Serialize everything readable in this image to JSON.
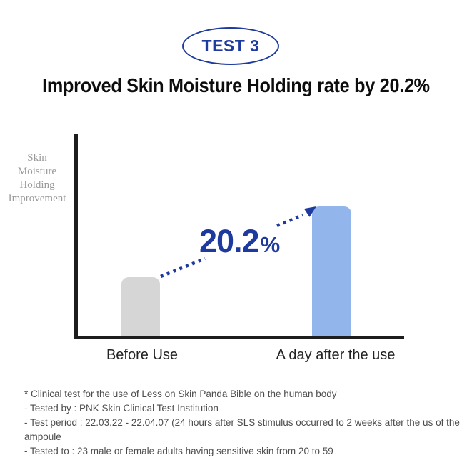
{
  "badge": {
    "label": "TEST 3"
  },
  "title": "Improved Skin Moisture Holding rate by 20.2%",
  "chart_data": {
    "type": "bar",
    "title": "Improved Skin Moisture Holding rate by 20.2%",
    "ylabel": "Skin Moisture Holding Improvement",
    "ylabel_lines": [
      "Skin",
      "Moisture",
      "Holding",
      "Improvement"
    ],
    "xlabel": "",
    "categories": [
      "Before Use",
      "A day after the use"
    ],
    "series": [
      {
        "name": "Skin Moisture Holding Improvement",
        "values": [
          29,
          64
        ]
      }
    ],
    "values": [
      29,
      64
    ],
    "value_note": "relative bar heights in % of plot area; no numeric y-axis shown",
    "improvement_pct": 20.2,
    "annotation": {
      "value": "20.2",
      "unit": "%"
    },
    "ylim": [
      0,
      100
    ],
    "grid": false,
    "legend": false
  },
  "footnotes": [
    "* Clinical test for the use of Less on Skin Panda Bible on the human body",
    "- Tested by : PNK Skin Clinical Test Institution",
    "- Test period : 22.03.22 - 22.04.07 (24 hours after SLS stimulus occurred to 2 weeks after the us of the ampoule",
    "- Tested to : 23 male or female adults having sensitive skin from 20 to 59"
  ],
  "colors": {
    "accent_navy": "#1e3a9e",
    "bar_before": "#d6d6d6",
    "bar_after": "#92b6ec",
    "axis": "#1d1d1d",
    "ylabel_text": "#9a9a9a",
    "xlabel_text": "#222222",
    "title_text": "#0d0d0d",
    "footnote_text": "#4d4d4d",
    "background": "#ffffff"
  }
}
